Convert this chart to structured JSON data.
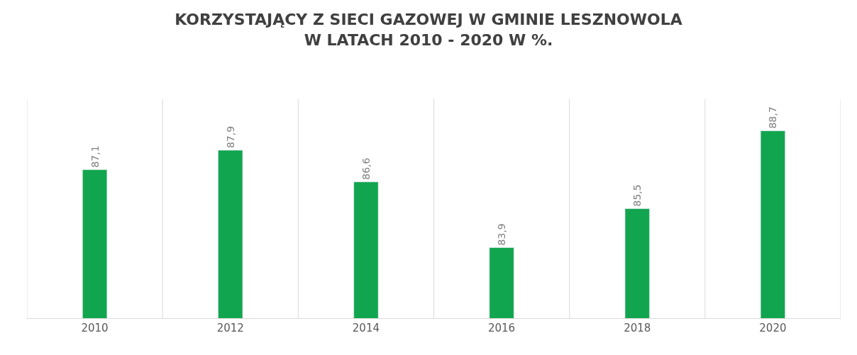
{
  "chart_data": {
    "type": "bar",
    "title": "KORZYSTAJĄCY Z SIECI GAZOWEJ W GMINIE LESZNOWOLA\nW LATACH 2010 - 2020 W %.",
    "categories": [
      "2010",
      "2012",
      "2014",
      "2016",
      "2018",
      "2020"
    ],
    "values": [
      87.1,
      87.9,
      86.6,
      83.9,
      85.5,
      88.7
    ],
    "value_labels": [
      "87,1",
      "87,9",
      "86,6",
      "83,9",
      "85,5",
      "88,7"
    ],
    "color": "#12a54f",
    "ylim": [
      81,
      90
    ],
    "tick_labels": "x",
    "grid": "x",
    "legend": false
  }
}
